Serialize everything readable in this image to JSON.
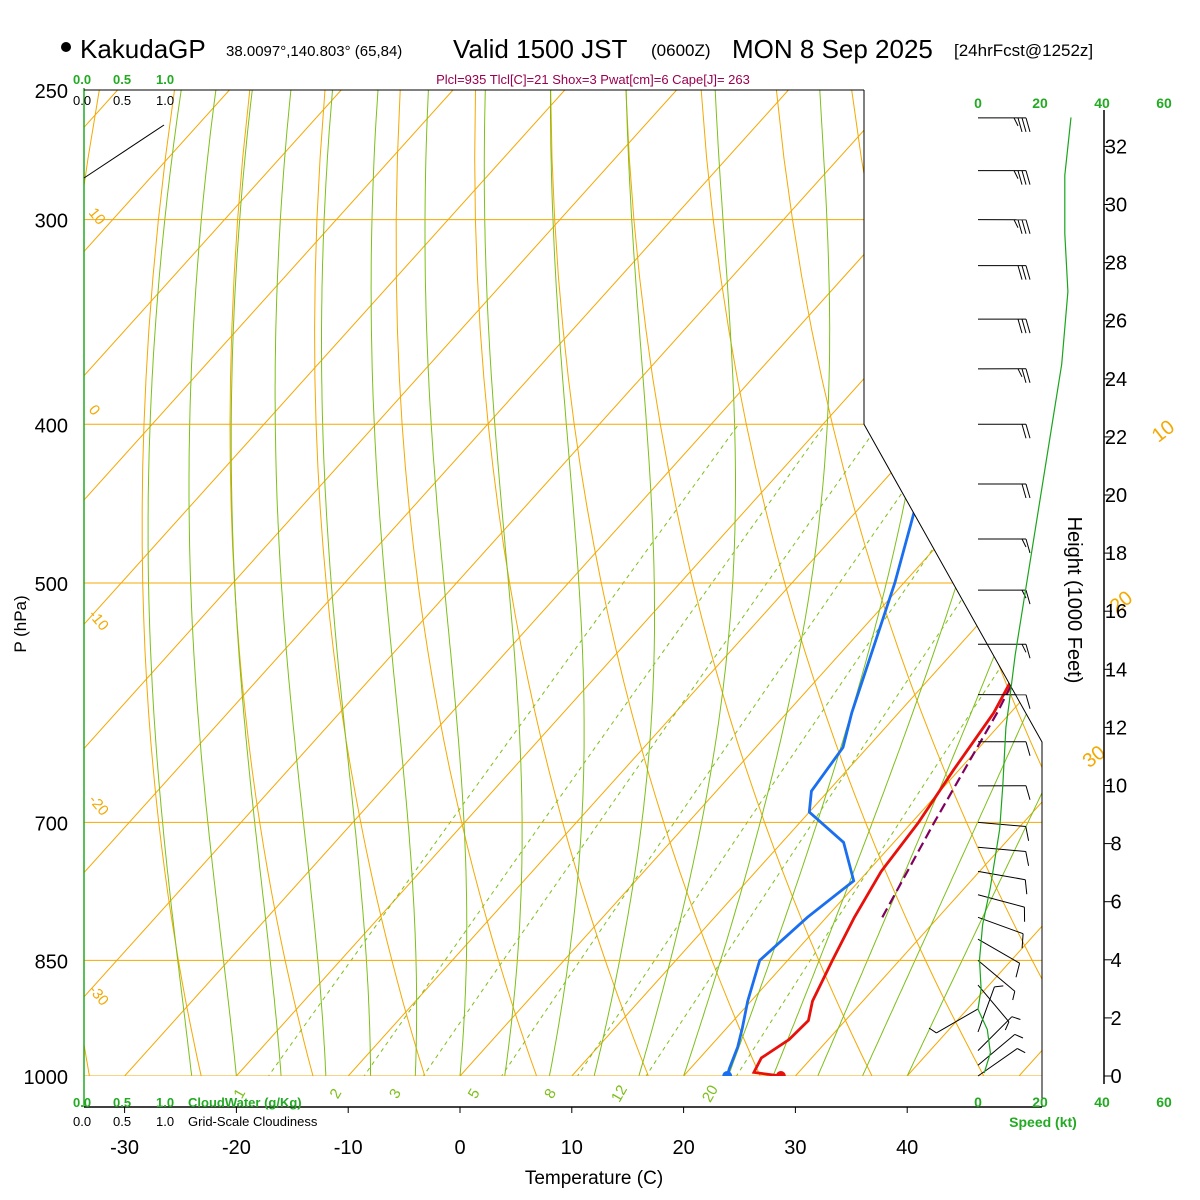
{
  "chart_data": {
    "type": "skew-t",
    "header": {
      "site": "KakudaGP",
      "coords": "38.0097°,140.803° (65,84)",
      "valid_prefix": "Valid 1500 JST",
      "valid_utc": "(0600Z)",
      "valid_date": "MON 8 Sep 2025",
      "forecast": "[24hrFcst@1252z]"
    },
    "indices_text": "Plcl=935 Tlcl[C]=21 Shox=3 Pwat[cm]=6 Cape[J]= 263",
    "cloud_scale_top": [
      "0.0",
      "0.5",
      "1.0"
    ],
    "cloud_scale_bottom": [
      "0.0",
      "0.5",
      "1.0"
    ],
    "cloudwater_label": "CloudWater (g/Kg)",
    "cloudiness_label": "Grid-Scale Cloudiness",
    "xlabel": "Temperature (C)",
    "ylabel": "P (hPa)",
    "height_label": "Height (1000 Feet)",
    "speed_label": "Speed (kt)",
    "temp_ticks": [
      -30,
      -20,
      -10,
      0,
      10,
      20,
      30,
      40
    ],
    "pressure_ticks": [
      250,
      300,
      400,
      500,
      700,
      850,
      1000
    ],
    "height_ticks": [
      0,
      2,
      4,
      6,
      8,
      10,
      12,
      14,
      16,
      18,
      20,
      22,
      24,
      26,
      28,
      30,
      32
    ],
    "speed_ticks": [
      0,
      20,
      40,
      60
    ],
    "temp_range": [
      -33,
      36
    ],
    "pressure_range": [
      250,
      1000
    ],
    "isotherm_labels": [
      {
        "t": 0,
        "text": "0"
      },
      {
        "t": 10,
        "text": "10"
      },
      {
        "t": 20,
        "text": "20"
      },
      {
        "t": 30,
        "text": "30"
      }
    ],
    "dry_adiabat_labels": [
      {
        "text": "10"
      },
      {
        "text": "0"
      },
      {
        "text": "-10"
      },
      {
        "text": "-20"
      },
      {
        "text": "-30"
      }
    ],
    "mixing_ratio_labels": [
      "1",
      "2",
      "3",
      "5",
      "8",
      "12",
      "20"
    ],
    "temperature_profile": [
      {
        "p": 1000,
        "t": 28.7
      },
      {
        "p": 995,
        "t": 26.0
      },
      {
        "p": 975,
        "t": 25.5
      },
      {
        "p": 950,
        "t": 26.5
      },
      {
        "p": 925,
        "t": 26.7
      },
      {
        "p": 900,
        "t": 25.5
      },
      {
        "p": 850,
        "t": 24.0
      },
      {
        "p": 800,
        "t": 22.5
      },
      {
        "p": 750,
        "t": 21.2
      },
      {
        "p": 700,
        "t": 20.6
      },
      {
        "p": 650,
        "t": 19.5
      },
      {
        "p": 600,
        "t": 18.5
      },
      {
        "p": 550,
        "t": 16.5
      },
      {
        "p": 500,
        "t": 13.8
      },
      {
        "p": 450,
        "t": 10.2
      },
      {
        "p": 400,
        "t": 5.8
      },
      {
        "p": 350,
        "t": 0.0
      },
      {
        "p": 300,
        "t": -7.8
      },
      {
        "p": 270,
        "t": -13.2
      }
    ],
    "dewpoint_profile": [
      {
        "p": 1000,
        "t": 23.9
      },
      {
        "p": 990,
        "t": 23.5
      },
      {
        "p": 960,
        "t": 22.5
      },
      {
        "p": 935,
        "t": 21.4
      },
      {
        "p": 900,
        "t": 19.7
      },
      {
        "p": 850,
        "t": 17.5
      },
      {
        "p": 800,
        "t": 18.3
      },
      {
        "p": 760,
        "t": 19.5
      },
      {
        "p": 720,
        "t": 15.5
      },
      {
        "p": 690,
        "t": 10.0
      },
      {
        "p": 670,
        "t": 8.5
      },
      {
        "p": 630,
        "t": 7.8
      },
      {
        "p": 600,
        "t": 5.8
      },
      {
        "p": 500,
        "t": -0.8
      },
      {
        "p": 450,
        "t": -5.0
      },
      {
        "p": 400,
        "t": -10.8
      },
      {
        "p": 370,
        "t": -16.5
      },
      {
        "p": 330,
        "t": -24.5
      },
      {
        "p": 300,
        "t": -30.5
      },
      {
        "p": 270,
        "t": -35.5
      }
    ],
    "parcel_profile": [
      {
        "p": 800,
        "t": 25.0
      },
      {
        "p": 700,
        "t": 22.0
      },
      {
        "p": 600,
        "t": 18.8
      },
      {
        "p": 500,
        "t": 14.3
      },
      {
        "p": 450,
        "t": 11.2
      },
      {
        "p": 400,
        "t": 7.0
      },
      {
        "p": 350,
        "t": 1.8
      },
      {
        "p": 300,
        "t": -5.5
      },
      {
        "p": 268,
        "t": -11.0
      }
    ],
    "surface_temp_c": 28.7,
    "surface_dewpoint_c": 23.9,
    "wind_speed_profile": [
      {
        "h": 0.1,
        "v": 2
      },
      {
        "h": 0.8,
        "v": 4
      },
      {
        "h": 1.6,
        "v": 3
      },
      {
        "h": 2.3,
        "v": 0
      },
      {
        "h": 3.0,
        "v": 1
      },
      {
        "h": 4.0,
        "v": 0.5
      },
      {
        "h": 5.2,
        "v": 1.5
      },
      {
        "h": 6.5,
        "v": 4
      },
      {
        "h": 8.5,
        "v": 7
      },
      {
        "h": 10.0,
        "v": 8
      },
      {
        "h": 12.0,
        "v": 9
      },
      {
        "h": 12.8,
        "v": 10
      },
      {
        "h": 14.5,
        "v": 12
      },
      {
        "h": 16.5,
        "v": 15
      },
      {
        "h": 18.5,
        "v": 18
      },
      {
        "h": 20.5,
        "v": 21
      },
      {
        "h": 22.5,
        "v": 24
      },
      {
        "h": 24.5,
        "v": 27
      },
      {
        "h": 27.0,
        "v": 29
      },
      {
        "h": 29.0,
        "v": 28
      },
      {
        "h": 31.0,
        "v": 28
      },
      {
        "h": 33.0,
        "v": 30
      }
    ],
    "wind_barbs": [
      {
        "p": 260,
        "dir": 270,
        "kt": 35
      },
      {
        "p": 280,
        "dir": 270,
        "kt": 35
      },
      {
        "p": 300,
        "dir": 270,
        "kt": 35
      },
      {
        "p": 320,
        "dir": 270,
        "kt": 30
      },
      {
        "p": 345,
        "dir": 270,
        "kt": 30
      },
      {
        "p": 370,
        "dir": 270,
        "kt": 25
      },
      {
        "p": 400,
        "dir": 270,
        "kt": 20
      },
      {
        "p": 435,
        "dir": 270,
        "kt": 20
      },
      {
        "p": 470,
        "dir": 270,
        "kt": 15
      },
      {
        "p": 505,
        "dir": 270,
        "kt": 15
      },
      {
        "p": 545,
        "dir": 270,
        "kt": 15
      },
      {
        "p": 585,
        "dir": 270,
        "kt": 10
      },
      {
        "p": 625,
        "dir": 270,
        "kt": 10
      },
      {
        "p": 665,
        "dir": 270,
        "kt": 10
      },
      {
        "p": 700,
        "dir": 275,
        "kt": 10
      },
      {
        "p": 725,
        "dir": 275,
        "kt": 10
      },
      {
        "p": 750,
        "dir": 280,
        "kt": 10
      },
      {
        "p": 775,
        "dir": 285,
        "kt": 10
      },
      {
        "p": 800,
        "dir": 290,
        "kt": 10
      },
      {
        "p": 825,
        "dir": 300,
        "kt": 10
      },
      {
        "p": 850,
        "dir": 310,
        "kt": 5
      },
      {
        "p": 880,
        "dir": 320,
        "kt": 5
      },
      {
        "p": 910,
        "dir": 60,
        "kt": 5
      },
      {
        "p": 940,
        "dir": 200,
        "kt": 5
      },
      {
        "p": 965,
        "dir": 225,
        "kt": 5
      },
      {
        "p": 985,
        "dir": 230,
        "kt": 5
      },
      {
        "p": 1000,
        "dir": 235,
        "kt": 5
      }
    ],
    "colors": {
      "isotherm": "#f5a800",
      "dry_adiabat": "#f5a800",
      "moist_adiabat": "#7dbf1a",
      "mixing_ratio": "#7dbf1a",
      "temperature": "#e8100a",
      "dewpoint": "#1a6ef0",
      "parcel": "#800060",
      "speed": "#1aa51a",
      "header_green": "#22aa22",
      "indices": "#990050"
    }
  }
}
